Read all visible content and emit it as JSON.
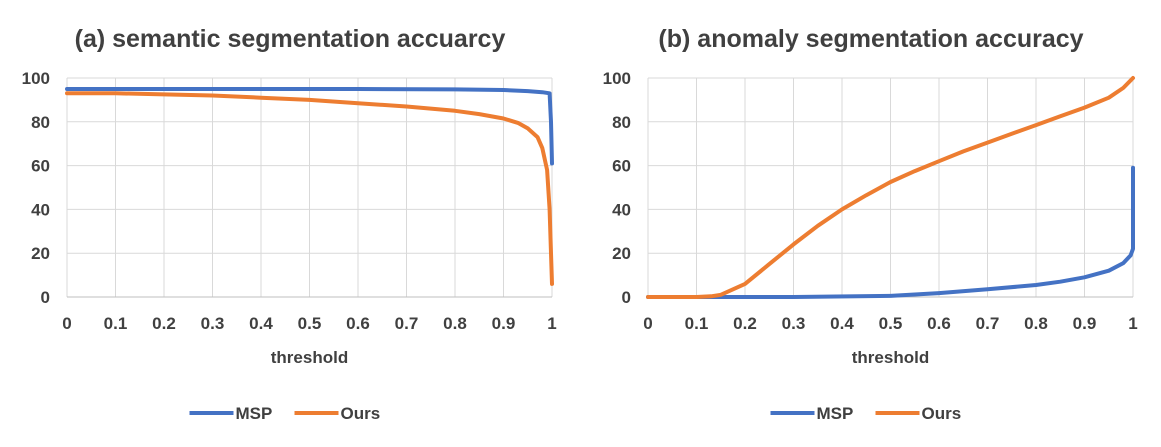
{
  "chart_data": [
    {
      "type": "line",
      "title": "(a) semantic segmentation accuarcy",
      "xlabel": "threshold",
      "ylabel": "",
      "xlim": [
        0,
        1
      ],
      "ylim": [
        0,
        100
      ],
      "x_ticks": [
        "0",
        "0.1",
        "0.2",
        "0.3",
        "0.4",
        "0.5",
        "0.6",
        "0.7",
        "0.8",
        "0.9",
        "1"
      ],
      "y_ticks": [
        "0",
        "20",
        "40",
        "60",
        "80",
        "100"
      ],
      "grid": true,
      "legend_position": "bottom",
      "series": [
        {
          "name": "MSP",
          "color": "#4472c4",
          "points": [
            [
              0,
              95
            ],
            [
              0.2,
              95
            ],
            [
              0.4,
              95
            ],
            [
              0.6,
              95
            ],
            [
              0.8,
              94.8
            ],
            [
              0.9,
              94.5
            ],
            [
              0.95,
              94
            ],
            [
              0.98,
              93.5
            ],
            [
              0.995,
              93
            ],
            [
              0.998,
              80
            ],
            [
              1.0,
              61
            ]
          ]
        },
        {
          "name": "Ours",
          "color": "#ed7d31",
          "points": [
            [
              0,
              93
            ],
            [
              0.1,
              93
            ],
            [
              0.2,
              92.5
            ],
            [
              0.3,
              92
            ],
            [
              0.4,
              91
            ],
            [
              0.5,
              90
            ],
            [
              0.6,
              88.5
            ],
            [
              0.7,
              87
            ],
            [
              0.8,
              85
            ],
            [
              0.85,
              83.5
            ],
            [
              0.9,
              81.5
            ],
            [
              0.93,
              79.5
            ],
            [
              0.95,
              77
            ],
            [
              0.97,
              73
            ],
            [
              0.98,
              68
            ],
            [
              0.99,
              58
            ],
            [
              0.995,
              40
            ],
            [
              0.998,
              20
            ],
            [
              1.0,
              6
            ]
          ]
        }
      ]
    },
    {
      "type": "line",
      "title": "(b) anomaly segmentation accuracy",
      "xlabel": "threshold",
      "ylabel": "",
      "xlim": [
        0,
        1
      ],
      "ylim": [
        0,
        100
      ],
      "x_ticks": [
        "0",
        "0.1",
        "0.2",
        "0.3",
        "0.4",
        "0.5",
        "0.6",
        "0.7",
        "0.8",
        "0.9",
        "1"
      ],
      "y_ticks": [
        "0",
        "20",
        "40",
        "60",
        "80",
        "100"
      ],
      "grid": true,
      "legend_position": "bottom",
      "series": [
        {
          "name": "MSP",
          "color": "#4472c4",
          "points": [
            [
              0,
              0
            ],
            [
              0.3,
              0
            ],
            [
              0.5,
              0.5
            ],
            [
              0.6,
              1.8
            ],
            [
              0.7,
              3.5
            ],
            [
              0.8,
              5.5
            ],
            [
              0.85,
              7
            ],
            [
              0.9,
              9
            ],
            [
              0.95,
              12
            ],
            [
              0.98,
              15.5
            ],
            [
              0.995,
              19
            ],
            [
              1.0,
              22
            ],
            [
              1.0,
              59
            ]
          ]
        },
        {
          "name": "Ours",
          "color": "#ed7d31",
          "points": [
            [
              0,
              0
            ],
            [
              0.1,
              0
            ],
            [
              0.13,
              0.3
            ],
            [
              0.15,
              1
            ],
            [
              0.2,
              6
            ],
            [
              0.25,
              15
            ],
            [
              0.3,
              24
            ],
            [
              0.35,
              32.5
            ],
            [
              0.4,
              40
            ],
            [
              0.45,
              46.5
            ],
            [
              0.5,
              52.5
            ],
            [
              0.55,
              57.5
            ],
            [
              0.6,
              62
            ],
            [
              0.65,
              66.5
            ],
            [
              0.7,
              70.5
            ],
            [
              0.75,
              74.5
            ],
            [
              0.8,
              78.5
            ],
            [
              0.85,
              82.5
            ],
            [
              0.9,
              86.5
            ],
            [
              0.95,
              91
            ],
            [
              0.98,
              95.5
            ],
            [
              1.0,
              100
            ]
          ]
        }
      ]
    }
  ]
}
